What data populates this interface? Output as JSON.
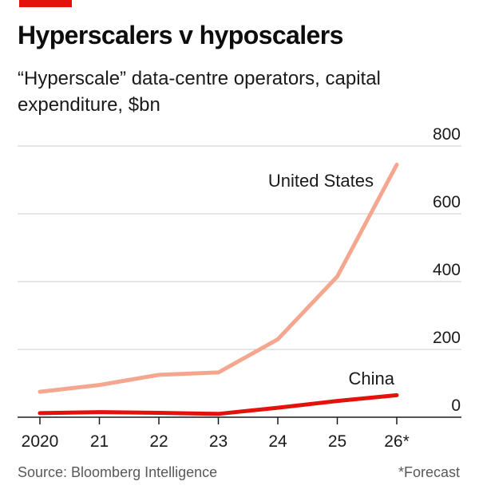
{
  "header": {
    "title": "Hyperscalers v hyposcalers",
    "subtitle": "“Hyperscale” data-centre operators, capital expenditure, $bn"
  },
  "footer": {
    "source": "Source: Bloomberg Intelligence",
    "note": "*Forecast"
  },
  "colors": {
    "accent": "#e3120b",
    "united_states": "#f5a68f",
    "china": "#e3120b",
    "grid": "#cccccc",
    "axis": "#1a1a1a"
  },
  "chart_data": {
    "type": "line",
    "x": [
      "2020",
      "21",
      "22",
      "23",
      "24",
      "25",
      "26*"
    ],
    "ylim": [
      0,
      800
    ],
    "yticks": [
      "0",
      "200",
      "400",
      "600",
      "800"
    ],
    "grid": true,
    "y_axis_side": "right",
    "series": [
      {
        "name": "United States",
        "values": [
          75,
          95,
          125,
          132,
          230,
          415,
          745
        ]
      },
      {
        "name": "China",
        "values": [
          12,
          15,
          13,
          10,
          28,
          48,
          65
        ]
      }
    ]
  }
}
